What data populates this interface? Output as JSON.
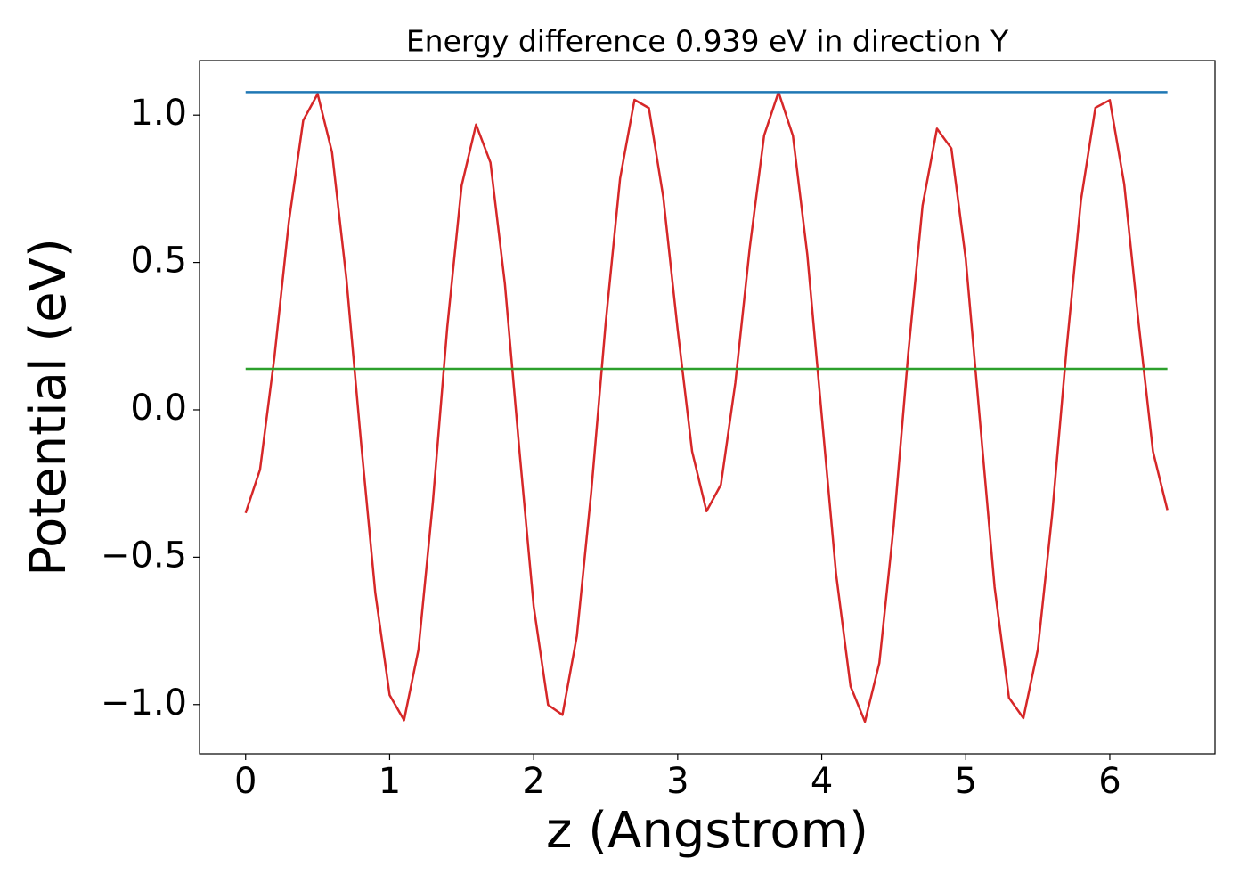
{
  "chart_data": {
    "type": "line",
    "title": "Energy difference 0.939 eV in direction Y",
    "xlabel": "z (Angstrom)",
    "ylabel": "Potential (eV)",
    "xlim": [
      -0.32,
      6.73
    ],
    "ylim": [
      -1.167,
      1.185
    ],
    "xticks": [
      0,
      1,
      2,
      3,
      4,
      5,
      6
    ],
    "yticks": [
      {
        "value": -1.0,
        "label": "−1.0"
      },
      {
        "value": -0.5,
        "label": "−0.5"
      },
      {
        "value": 0.0,
        "label": "0.0"
      },
      {
        "value": 0.5,
        "label": "0.5"
      },
      {
        "value": 1.0,
        "label": "1.0"
      }
    ],
    "grid": false,
    "series": [
      {
        "color": "#d62728",
        "x": [
          0,
          0.1,
          0.2,
          0.3,
          0.4,
          0.5,
          0.6,
          0.7,
          0.8,
          0.9,
          1.0,
          1.1,
          1.2,
          1.3,
          1.4,
          1.5,
          1.6,
          1.7,
          1.8,
          1.9,
          2.0,
          2.1,
          2.2,
          2.3,
          2.4,
          2.5,
          2.6,
          2.7,
          2.8,
          2.9,
          3.0,
          3.1,
          3.2,
          3.3,
          3.4,
          3.5,
          3.6,
          3.7,
          3.8,
          3.9,
          4.0,
          4.1,
          4.2,
          4.3,
          4.4,
          4.5,
          4.6,
          4.7,
          4.8,
          4.9,
          5.0,
          5.1,
          5.2,
          5.3,
          5.4,
          5.5,
          5.6,
          5.7,
          5.8,
          5.9,
          6.0,
          6.1,
          6.2,
          6.3,
          6.4
        ],
        "values": [
          -0.35,
          -0.203,
          0.179,
          0.637,
          0.982,
          1.072,
          0.874,
          0.444,
          -0.103,
          -0.62,
          -0.968,
          -1.053,
          -0.814,
          -0.313,
          0.28,
          0.761,
          0.968,
          0.839,
          0.428,
          -0.132,
          -0.666,
          -1.001,
          -1.035,
          -0.767,
          -0.277,
          0.295,
          0.785,
          1.052,
          1.024,
          0.721,
          0.271,
          -0.141,
          -0.344,
          -0.254,
          0.091,
          0.549,
          0.931,
          1.078,
          0.93,
          0.526,
          -0.019,
          -0.558,
          -0.938,
          -1.058,
          -0.859,
          -0.392,
          0.188,
          0.693,
          0.954,
          0.887,
          0.511,
          -0.045,
          -0.601,
          -0.977,
          -1.046,
          -0.814,
          -0.354,
          0.208,
          0.712,
          1.025,
          1.051,
          0.766,
          0.295,
          -0.141,
          -0.34
        ]
      },
      {
        "color": "#1f77b4",
        "x": [
          0,
          6.4
        ],
        "values": [
          1.078,
          1.078
        ]
      },
      {
        "color": "#2ca02c",
        "x": [
          0,
          6.4
        ],
        "values": [
          0.139,
          0.139
        ]
      }
    ]
  }
}
